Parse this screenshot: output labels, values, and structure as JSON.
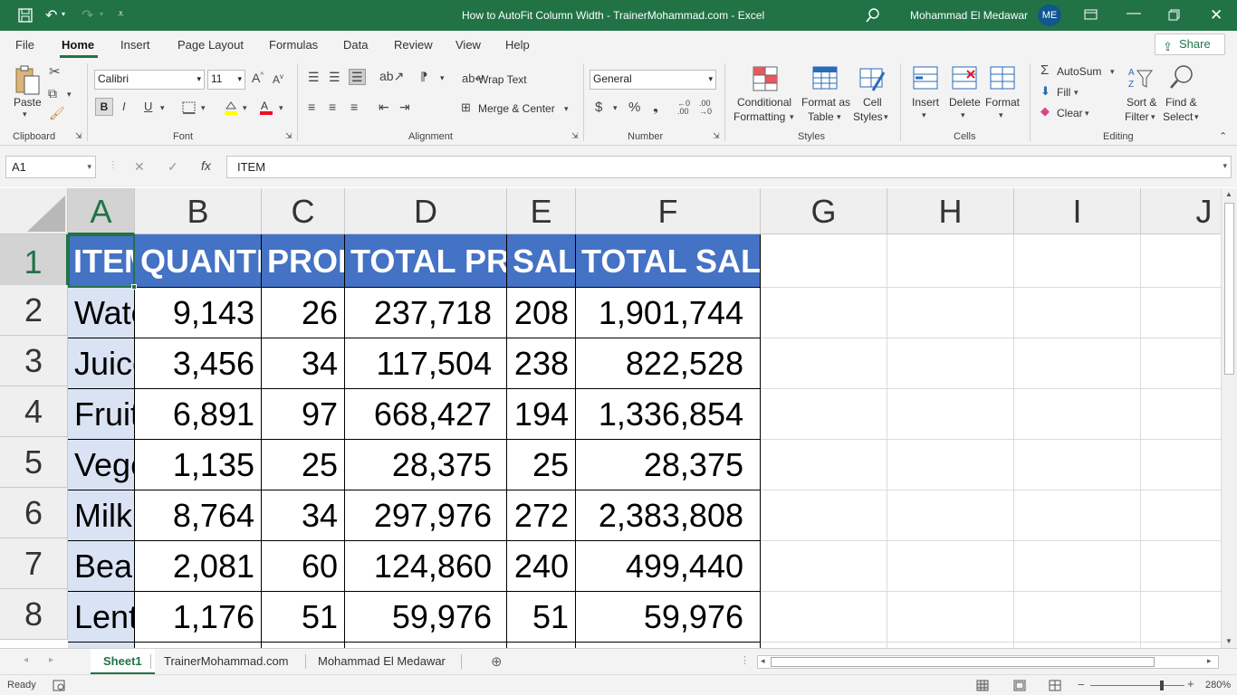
{
  "title": {
    "window_title": "How to AutoFit Column Width - TrainerMohammad.com  -  Excel",
    "user_name": "Mohammad El Medawar",
    "user_initials": "ME"
  },
  "menu": [
    "File",
    "Home",
    "Insert",
    "Page Layout",
    "Formulas",
    "Data",
    "Review",
    "View",
    "Help"
  ],
  "share_label": "Share",
  "ribbon": {
    "clipboard": {
      "label": "Clipboard",
      "paste": "Paste"
    },
    "font": {
      "label": "Font",
      "name": "Calibri",
      "size": "11",
      "bold": "B",
      "italic": "I",
      "underline": "U"
    },
    "alignment": {
      "label": "Alignment",
      "wrap": "Wrap Text",
      "merge": "Merge & Center"
    },
    "number": {
      "label": "Number",
      "format": "General"
    },
    "styles": {
      "label": "Styles",
      "cond1": "Conditional",
      "cond2": "Formatting",
      "fmt1": "Format as",
      "fmt2": "Table",
      "cell1": "Cell",
      "cell2": "Styles"
    },
    "cells": {
      "label": "Cells",
      "insert": "Insert",
      "delete": "Delete",
      "format": "Format"
    },
    "editing": {
      "label": "Editing",
      "autosum": "AutoSum",
      "fill": "Fill",
      "clear": "Clear",
      "sort1": "Sort &",
      "sort2": "Filter",
      "find1": "Find &",
      "find2": "Select"
    }
  },
  "formula_bar": {
    "name_box": "A1",
    "fx": "fx",
    "content": "ITEM"
  },
  "columns": [
    "A",
    "B",
    "C",
    "D",
    "E",
    "F",
    "G",
    "H",
    "I",
    "J"
  ],
  "rows": [
    "1",
    "2",
    "3",
    "4",
    "5",
    "6",
    "7",
    "8"
  ],
  "headers": [
    "ITEM",
    "QUANTITY",
    "PROFIT",
    "TOTAL PROFIT",
    "SALES",
    "TOTAL SALES"
  ],
  "data_rows": [
    [
      "Water",
      "9,143",
      "26",
      "237,718",
      "208",
      "1,901,744"
    ],
    [
      "Juice",
      "3,456",
      "34",
      "117,504",
      "238",
      "822,528"
    ],
    [
      "Fruits",
      "6,891",
      "97",
      "668,427",
      "194",
      "1,336,854"
    ],
    [
      "Vegetables",
      "1,135",
      "25",
      "28,375",
      "25",
      "28,375"
    ],
    [
      "Milk",
      "8,764",
      "34",
      "297,976",
      "272",
      "2,383,808"
    ],
    [
      "Beans",
      "2,081",
      "60",
      "124,860",
      "240",
      "499,440"
    ],
    [
      "Lentils",
      "1,176",
      "51",
      "59,976",
      "51",
      "59,976"
    ]
  ],
  "sheets": [
    "Sheet1",
    "TrainerMohammad.com",
    "Mohammad El Medawar"
  ],
  "status": {
    "ready": "Ready",
    "zoom": "280%"
  },
  "colors": {
    "accent": "#217346",
    "header_fill": "#4472c4",
    "item_fill": "#dae3f3"
  }
}
